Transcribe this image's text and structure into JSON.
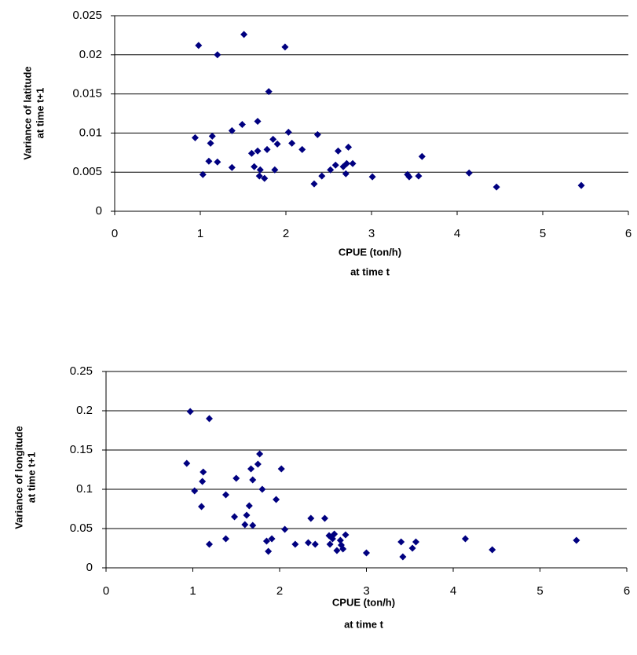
{
  "chart_data": [
    {
      "type": "scatter",
      "color": "#000080",
      "grid": true,
      "x_label": [
        "CPUE (ton/h)",
        "at time t"
      ],
      "y_label": [
        "Variance of latitude",
        "at time t+1"
      ],
      "xlim": [
        0,
        6
      ],
      "xticks": [
        0,
        1,
        2,
        3,
        4,
        5,
        6
      ],
      "ylim": [
        0,
        0.025
      ],
      "yticks": [
        0,
        0.005,
        0.01,
        0.015,
        0.02,
        0.025
      ],
      "x": [
        0.98,
        1.51,
        1.2,
        1.99,
        1.8,
        0.94,
        1.14,
        1.12,
        1.03,
        1.1,
        1.2,
        1.37,
        1.49,
        1.37,
        1.67,
        1.6,
        1.67,
        1.78,
        1.85,
        1.9,
        2.03,
        2.07,
        2.19,
        1.63,
        1.7,
        1.69,
        1.75,
        1.87,
        2.37,
        2.33,
        2.42,
        2.52,
        2.58,
        2.61,
        2.67,
        2.71,
        2.73,
        2.7,
        2.78,
        3.01,
        3.42,
        3.44,
        3.55,
        3.59,
        4.14,
        4.46,
        5.45
      ],
      "values": [
        0.0212,
        0.0226,
        0.02,
        0.021,
        0.0153,
        0.0094,
        0.0096,
        0.0087,
        0.0047,
        0.0064,
        0.0063,
        0.0103,
        0.0111,
        0.0056,
        0.0115,
        0.0074,
        0.0077,
        0.0079,
        0.0092,
        0.0086,
        0.0101,
        0.0087,
        0.0079,
        0.0057,
        0.0053,
        0.0045,
        0.0042,
        0.0053,
        0.0098,
        0.0035,
        0.0045,
        0.0053,
        0.0059,
        0.0077,
        0.0057,
        0.0061,
        0.0082,
        0.0048,
        0.0061,
        0.0044,
        0.0047,
        0.0044,
        0.0045,
        0.007,
        0.0049,
        0.0031,
        0.0033
      ]
    },
    {
      "type": "scatter",
      "color": "#000080",
      "grid": true,
      "x_label": [
        "CPUE (ton/h)",
        "at time t"
      ],
      "y_label": [
        "Variance of longitude",
        "at time t+1"
      ],
      "xlim": [
        0,
        6
      ],
      "xticks": [
        0,
        1,
        2,
        3,
        4,
        5,
        6
      ],
      "ylim": [
        0,
        0.25
      ],
      "yticks": [
        0,
        0.05,
        0.1,
        0.15,
        0.2,
        0.25
      ],
      "x": [
        0.97,
        1.19,
        0.93,
        1.12,
        1.11,
        1.02,
        1.1,
        1.19,
        1.38,
        1.38,
        1.5,
        1.48,
        1.6,
        1.62,
        1.65,
        1.67,
        1.75,
        1.77,
        1.69,
        1.69,
        1.8,
        1.85,
        1.87,
        1.91,
        1.96,
        2.02,
        2.06,
        2.18,
        2.33,
        2.36,
        2.41,
        2.52,
        2.57,
        2.58,
        2.61,
        2.63,
        2.66,
        2.71,
        2.7,
        2.73,
        2.76,
        3.0,
        3.4,
        3.42,
        3.53,
        3.57,
        4.14,
        4.45,
        5.42
      ],
      "values": [
        0.199,
        0.19,
        0.133,
        0.122,
        0.11,
        0.098,
        0.078,
        0.03,
        0.093,
        0.037,
        0.114,
        0.065,
        0.055,
        0.067,
        0.079,
        0.126,
        0.132,
        0.145,
        0.112,
        0.054,
        0.1,
        0.034,
        0.021,
        0.037,
        0.087,
        0.126,
        0.049,
        0.03,
        0.032,
        0.063,
        0.03,
        0.063,
        0.041,
        0.03,
        0.037,
        0.043,
        0.022,
        0.029,
        0.035,
        0.024,
        0.042,
        0.019,
        0.033,
        0.014,
        0.025,
        0.033,
        0.037,
        0.023,
        0.035
      ]
    }
  ]
}
